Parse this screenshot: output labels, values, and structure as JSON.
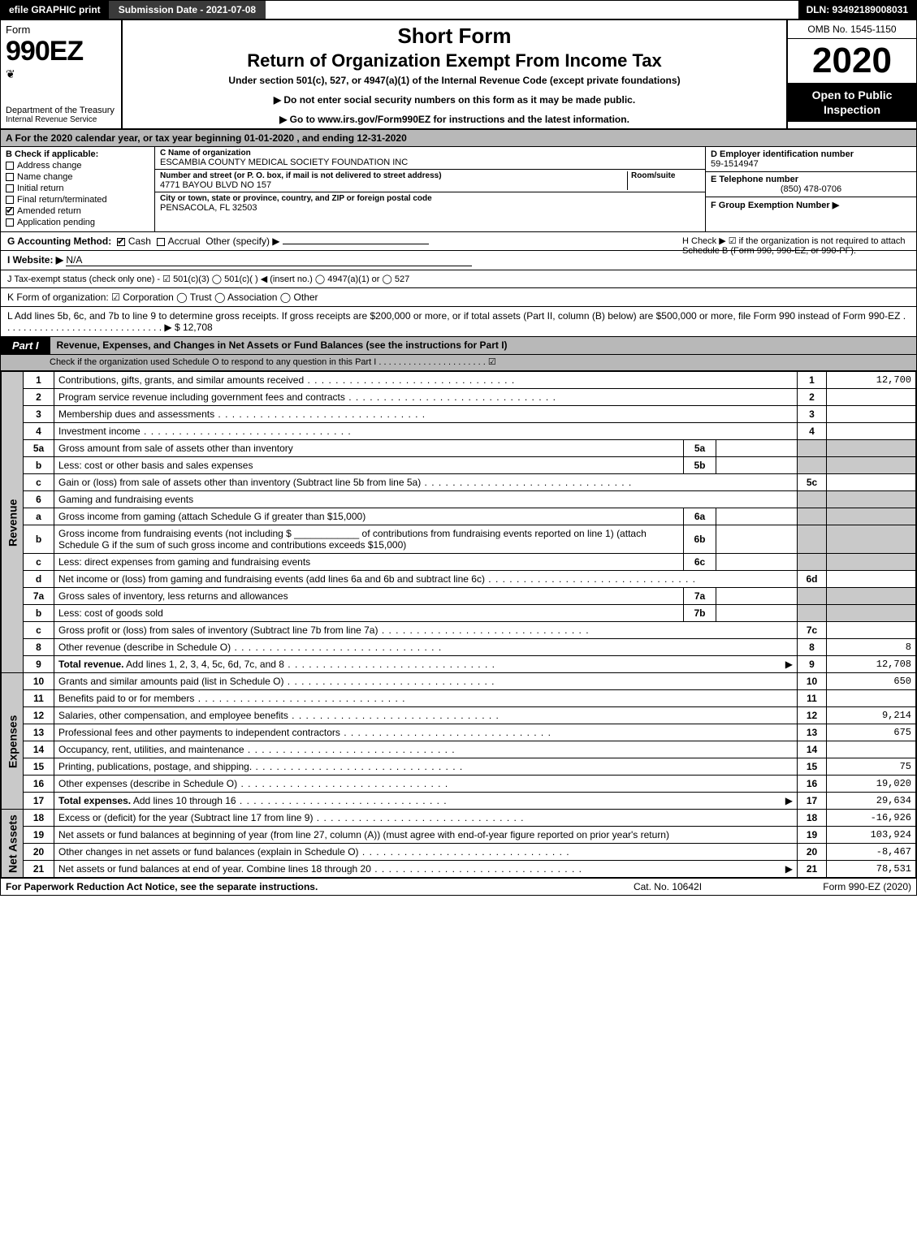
{
  "topbar": {
    "efile": "efile GRAPHIC print",
    "submission": "Submission Date - 2021-07-08",
    "dln": "DLN: 93492189008031"
  },
  "header": {
    "form_word": "Form",
    "form_no": "990EZ",
    "dept": "Department of the Treasury",
    "irs": "Internal Revenue Service",
    "title1": "Short Form",
    "title2": "Return of Organization Exempt From Income Tax",
    "subtitle": "Under section 501(c), 527, or 4947(a)(1) of the Internal Revenue Code (except private foundations)",
    "note1": "▶ Do not enter social security numbers on this form as it may be made public.",
    "note2": "▶ Go to www.irs.gov/Form990EZ for instructions and the latest information.",
    "omb": "OMB No. 1545-1150",
    "year": "2020",
    "inspect": "Open to Public Inspection"
  },
  "lineA": "A For the 2020 calendar year, or tax year beginning 01-01-2020 , and ending 12-31-2020",
  "boxB": {
    "heading": "B Check if applicable:",
    "items": [
      {
        "label": "Address change",
        "checked": false
      },
      {
        "label": "Name change",
        "checked": false
      },
      {
        "label": "Initial return",
        "checked": false
      },
      {
        "label": "Final return/terminated",
        "checked": false
      },
      {
        "label": "Amended return",
        "checked": true
      },
      {
        "label": "Application pending",
        "checked": false
      }
    ]
  },
  "boxC": {
    "name_label": "C Name of organization",
    "name": "ESCAMBIA COUNTY MEDICAL SOCIETY FOUNDATION INC",
    "street_label": "Number and street (or P. O. box, if mail is not delivered to street address)",
    "room_label": "Room/suite",
    "street": "4771 BAYOU BLVD NO 157",
    "city_label": "City or town, state or province, country, and ZIP or foreign postal code",
    "city": "PENSACOLA, FL  32503"
  },
  "boxD": {
    "ein_label": "D Employer identification number",
    "ein": "59-1514947",
    "tel_label": "E Telephone number",
    "tel": "(850) 478-0706",
    "group_label": "F Group Exemption Number  ▶"
  },
  "lineG": {
    "label": "G Accounting Method:",
    "cash": "Cash",
    "accrual": "Accrual",
    "other": "Other (specify) ▶"
  },
  "lineH": "H  Check ▶ ☑ if the organization is not required to attach Schedule B (Form 990, 990-EZ, or 990-PF).",
  "lineI": {
    "label": "I Website: ▶",
    "value": "N/A"
  },
  "lineJ": "J Tax-exempt status (check only one) - ☑ 501(c)(3)  ◯ 501(c)(  ) ◀ (insert no.)  ◯ 4947(a)(1) or  ◯ 527",
  "lineK": "K Form of organization:  ☑ Corporation  ◯ Trust  ◯ Association  ◯ Other",
  "lineL": {
    "text": "L Add lines 5b, 6c, and 7b to line 9 to determine gross receipts. If gross receipts are $200,000 or more, or if total assets (Part II, column (B) below) are $500,000 or more, file Form 990 instead of Form 990-EZ . . . . . . . . . . . . . . . . . . . . . . . . . . . . . . ▶",
    "amount": "$ 12,708"
  },
  "part1": {
    "tag": "Part I",
    "title": "Revenue, Expenses, and Changes in Net Assets or Fund Balances (see the instructions for Part I)",
    "sub": "Check if the organization used Schedule O to respond to any question in this Part I . . . . . . . . . . . . . . . . . . . . . .  ☑"
  },
  "sections": {
    "revenue": "Revenue",
    "expenses": "Expenses",
    "netassets": "Net Assets"
  },
  "rows": [
    {
      "sec": "revenue",
      "n": "1",
      "d": "Contributions, gifts, grants, and similar amounts received",
      "ln": "1",
      "amt": "12,700"
    },
    {
      "sec": "revenue",
      "n": "2",
      "d": "Program service revenue including government fees and contracts",
      "ln": "2",
      "amt": ""
    },
    {
      "sec": "revenue",
      "n": "3",
      "d": "Membership dues and assessments",
      "ln": "3",
      "amt": ""
    },
    {
      "sec": "revenue",
      "n": "4",
      "d": "Investment income",
      "ln": "4",
      "amt": ""
    },
    {
      "sec": "revenue",
      "n": "5a",
      "d": "Gross amount from sale of assets other than inventory",
      "sub": "5a",
      "subval": "",
      "shade": true
    },
    {
      "sec": "revenue",
      "n": "b",
      "d": "Less: cost or other basis and sales expenses",
      "sub": "5b",
      "subval": "",
      "shade": true
    },
    {
      "sec": "revenue",
      "n": "c",
      "d": "Gain or (loss) from sale of assets other than inventory (Subtract line 5b from line 5a)",
      "ln": "5c",
      "amt": ""
    },
    {
      "sec": "revenue",
      "n": "6",
      "d": "Gaming and fundraising events",
      "noln": true
    },
    {
      "sec": "revenue",
      "n": "a",
      "d": "Gross income from gaming (attach Schedule G if greater than $15,000)",
      "sub": "6a",
      "subval": "",
      "shade": true
    },
    {
      "sec": "revenue",
      "n": "b",
      "d": "Gross income from fundraising events (not including $ ____________ of contributions from fundraising events reported on line 1) (attach Schedule G if the sum of such gross income and contributions exceeds $15,000)",
      "sub": "6b",
      "subval": "",
      "shade": true,
      "tall": true
    },
    {
      "sec": "revenue",
      "n": "c",
      "d": "Less: direct expenses from gaming and fundraising events",
      "sub": "6c",
      "subval": "",
      "shade": true
    },
    {
      "sec": "revenue",
      "n": "d",
      "d": "Net income or (loss) from gaming and fundraising events (add lines 6a and 6b and subtract line 6c)",
      "ln": "6d",
      "amt": ""
    },
    {
      "sec": "revenue",
      "n": "7a",
      "d": "Gross sales of inventory, less returns and allowances",
      "sub": "7a",
      "subval": "",
      "shade": true
    },
    {
      "sec": "revenue",
      "n": "b",
      "d": "Less: cost of goods sold",
      "sub": "7b",
      "subval": "",
      "shade": true
    },
    {
      "sec": "revenue",
      "n": "c",
      "d": "Gross profit or (loss) from sales of inventory (Subtract line 7b from line 7a)",
      "ln": "7c",
      "amt": ""
    },
    {
      "sec": "revenue",
      "n": "8",
      "d": "Other revenue (describe in Schedule O)",
      "ln": "8",
      "amt": "8"
    },
    {
      "sec": "revenue",
      "n": "9",
      "d": "Total revenue. Add lines 1, 2, 3, 4, 5c, 6d, 7c, and 8",
      "ln": "9",
      "amt": "12,708",
      "bold": true,
      "arrow": true
    },
    {
      "sec": "expenses",
      "n": "10",
      "d": "Grants and similar amounts paid (list in Schedule O)",
      "ln": "10",
      "amt": "650"
    },
    {
      "sec": "expenses",
      "n": "11",
      "d": "Benefits paid to or for members",
      "ln": "11",
      "amt": ""
    },
    {
      "sec": "expenses",
      "n": "12",
      "d": "Salaries, other compensation, and employee benefits",
      "ln": "12",
      "amt": "9,214"
    },
    {
      "sec": "expenses",
      "n": "13",
      "d": "Professional fees and other payments to independent contractors",
      "ln": "13",
      "amt": "675"
    },
    {
      "sec": "expenses",
      "n": "14",
      "d": "Occupancy, rent, utilities, and maintenance",
      "ln": "14",
      "amt": ""
    },
    {
      "sec": "expenses",
      "n": "15",
      "d": "Printing, publications, postage, and shipping.",
      "ln": "15",
      "amt": "75"
    },
    {
      "sec": "expenses",
      "n": "16",
      "d": "Other expenses (describe in Schedule O)",
      "ln": "16",
      "amt": "19,020"
    },
    {
      "sec": "expenses",
      "n": "17",
      "d": "Total expenses. Add lines 10 through 16",
      "ln": "17",
      "amt": "29,634",
      "bold": true,
      "arrow": true
    },
    {
      "sec": "netassets",
      "n": "18",
      "d": "Excess or (deficit) for the year (Subtract line 17 from line 9)",
      "ln": "18",
      "amt": "-16,926"
    },
    {
      "sec": "netassets",
      "n": "19",
      "d": "Net assets or fund balances at beginning of year (from line 27, column (A)) (must agree with end-of-year figure reported on prior year's return)",
      "ln": "19",
      "amt": "103,924",
      "tall": true
    },
    {
      "sec": "netassets",
      "n": "20",
      "d": "Other changes in net assets or fund balances (explain in Schedule O)",
      "ln": "20",
      "amt": "-8,467"
    },
    {
      "sec": "netassets",
      "n": "21",
      "d": "Net assets or fund balances at end of year. Combine lines 18 through 20",
      "ln": "21",
      "amt": "78,531",
      "arrow": true
    }
  ],
  "footer": {
    "left": "For Paperwork Reduction Act Notice, see the separate instructions.",
    "mid": "Cat. No. 10642I",
    "right": "Form 990-EZ (2020)"
  }
}
